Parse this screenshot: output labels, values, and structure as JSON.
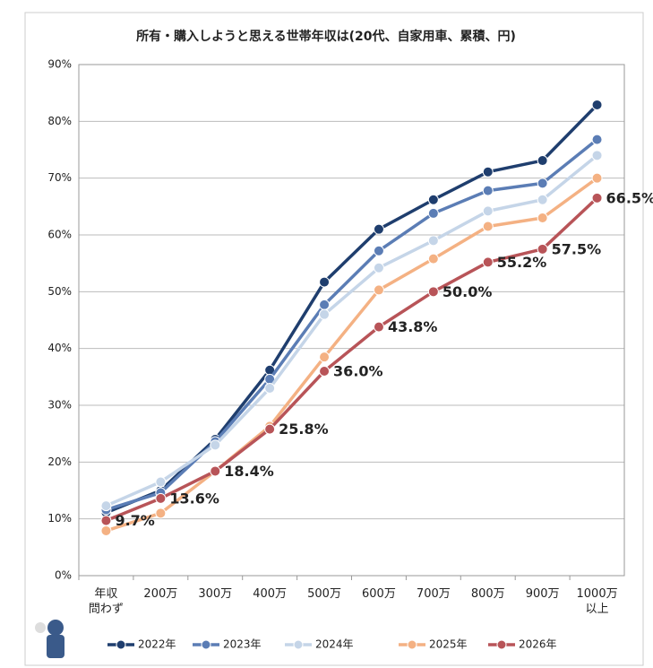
{
  "chart_data": {
    "type": "line",
    "title": "所有・購入しようと思える世帯年収は(20代、自家用車、累積、円)",
    "categories": [
      "年収\n問わず",
      "200万",
      "300万",
      "400万",
      "500万",
      "600万",
      "700万",
      "800万",
      "900万",
      "1000万\n以上"
    ],
    "series": [
      {
        "name": "2022年",
        "color": "#1f3e6e",
        "values": [
          11.1,
          15.0,
          24.0,
          36.2,
          51.7,
          61.0,
          66.2,
          71.1,
          73.1,
          82.9
        ]
      },
      {
        "name": "2023年",
        "color": "#5b7db5",
        "values": [
          11.6,
          14.6,
          23.6,
          34.6,
          47.7,
          57.2,
          63.8,
          67.8,
          69.1,
          76.8
        ]
      },
      {
        "name": "2024年",
        "color": "#c5d5e8",
        "values": [
          12.3,
          16.5,
          23.0,
          33.0,
          46.0,
          54.2,
          59.0,
          64.2,
          66.2,
          74.0
        ]
      },
      {
        "name": "2025年",
        "color": "#f4b183",
        "values": [
          7.9,
          11.0,
          18.4,
          26.3,
          38.5,
          50.3,
          55.8,
          61.5,
          63.0,
          70.0
        ]
      },
      {
        "name": "2026年",
        "color": "#b85458",
        "values": [
          9.7,
          13.6,
          18.4,
          25.8,
          36.0,
          43.8,
          50.0,
          55.2,
          57.5,
          66.5
        ],
        "value_labels": [
          "9.7%",
          "13.6%",
          "18.4%",
          "25.8%",
          "36.0%",
          "43.8%",
          "50.0%",
          "55.2%",
          "57.5%",
          "66.5%"
        ]
      }
    ],
    "ylim": [
      0,
      90
    ],
    "yticks": [
      {
        "value": 0,
        "label": "0%"
      },
      {
        "value": 10,
        "label": "10%"
      },
      {
        "value": 20,
        "label": "20%"
      },
      {
        "value": 30,
        "label": "30%"
      },
      {
        "value": 40,
        "label": "40%"
      },
      {
        "value": 50,
        "label": "50%"
      },
      {
        "value": 60,
        "label": "60%"
      },
      {
        "value": 70,
        "label": "70%"
      },
      {
        "value": 80,
        "label": "80%"
      },
      {
        "value": 90,
        "label": "90%"
      }
    ],
    "grid": true,
    "legend": "bottom"
  }
}
